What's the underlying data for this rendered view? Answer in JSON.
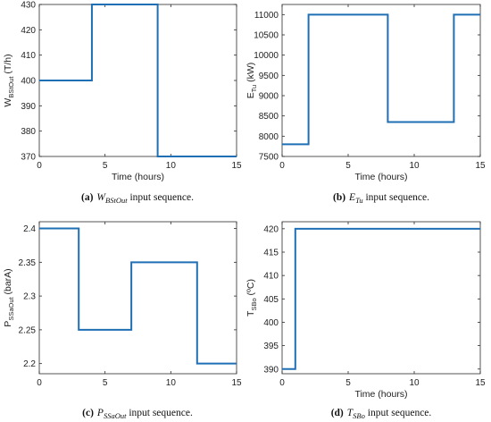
{
  "panels": [
    {
      "caption": {
        "tag": "(a)",
        "var": "W",
        "var_sub": "BStOut",
        "rest": " input sequence."
      },
      "chart_data": {
        "type": "line",
        "x": [
          0,
          4,
          4,
          9,
          9,
          15
        ],
        "y": [
          400,
          400,
          430,
          430,
          370,
          370
        ],
        "xlabel": "Time (hours)",
        "ylabel": {
          "main": "W",
          "sub": "BStOut",
          "unit": " (T/h)"
        },
        "xlim": [
          0,
          15
        ],
        "ylim": [
          370,
          430
        ],
        "xticks": [
          0,
          5,
          10,
          15
        ],
        "yticks": [
          370,
          380,
          390,
          400,
          410,
          420,
          430
        ],
        "ytick_labels": [
          "370",
          "380",
          "390",
          "400",
          "410",
          "420",
          "430"
        ],
        "grid": false
      }
    },
    {
      "caption": {
        "tag": "(b)",
        "var": "E",
        "var_sub": "Tu",
        "rest": " input sequence."
      },
      "chart_data": {
        "type": "line",
        "x": [
          0,
          2,
          2,
          8,
          8,
          13,
          13,
          15
        ],
        "y": [
          7800,
          7800,
          11000,
          11000,
          8350,
          8350,
          11000,
          11000
        ],
        "xlabel": "Time (hours)",
        "ylabel": {
          "main": "E",
          "sub": "Tu",
          "unit": " (kW)"
        },
        "xlim": [
          0,
          15
        ],
        "ylim": [
          7500,
          11250
        ],
        "xticks": [
          0,
          5,
          10,
          15
        ],
        "yticks": [
          7500,
          8000,
          8500,
          9000,
          9500,
          10000,
          10500,
          11000
        ],
        "ytick_labels": [
          "7500",
          "8000",
          "8500",
          "9000",
          "9500",
          "10000",
          "10500",
          "11000"
        ],
        "grid": false
      }
    },
    {
      "caption": {
        "tag": "(c)",
        "var": "P",
        "var_sub": "SSaOut",
        "rest": " input sequence."
      },
      "chart_data": {
        "type": "line",
        "x": [
          0,
          3,
          3,
          7,
          7,
          12,
          12,
          15
        ],
        "y": [
          2.4,
          2.4,
          2.25,
          2.25,
          2.35,
          2.35,
          2.2,
          2.2
        ],
        "xlabel": "",
        "ylabel": {
          "main": "P",
          "sub": "SSaOut",
          "unit": " (barA)"
        },
        "xlim": [
          0,
          15
        ],
        "ylim": [
          2.185,
          2.41
        ],
        "xticks": [
          0,
          5,
          10,
          15
        ],
        "yticks": [
          2.2,
          2.25,
          2.3,
          2.35,
          2.4
        ],
        "ytick_labels": [
          "2.2",
          "2.25",
          "2.3",
          "2.35",
          "2.4"
        ],
        "grid": false
      }
    },
    {
      "caption": {
        "tag": "(d)",
        "var": "T",
        "var_sub": "SBo",
        "rest": " input sequence."
      },
      "chart_data": {
        "type": "line",
        "x": [
          0,
          1,
          1,
          15
        ],
        "y": [
          390,
          390,
          420,
          420
        ],
        "xlabel": "Time (hours)",
        "ylabel": {
          "main": "T",
          "sub": "SBo",
          "unit": " (ºC)"
        },
        "xlim": [
          0,
          15
        ],
        "ylim": [
          389,
          421.5
        ],
        "xticks": [
          0,
          5,
          10,
          15
        ],
        "yticks": [
          390,
          395,
          400,
          405,
          410,
          415,
          420
        ],
        "ytick_labels": [
          "390",
          "395",
          "400",
          "405",
          "410",
          "415",
          "420"
        ],
        "grid": false
      }
    }
  ],
  "style": {
    "line_color": "#1f6fb5",
    "axis_color": "#2a2a2a"
  }
}
